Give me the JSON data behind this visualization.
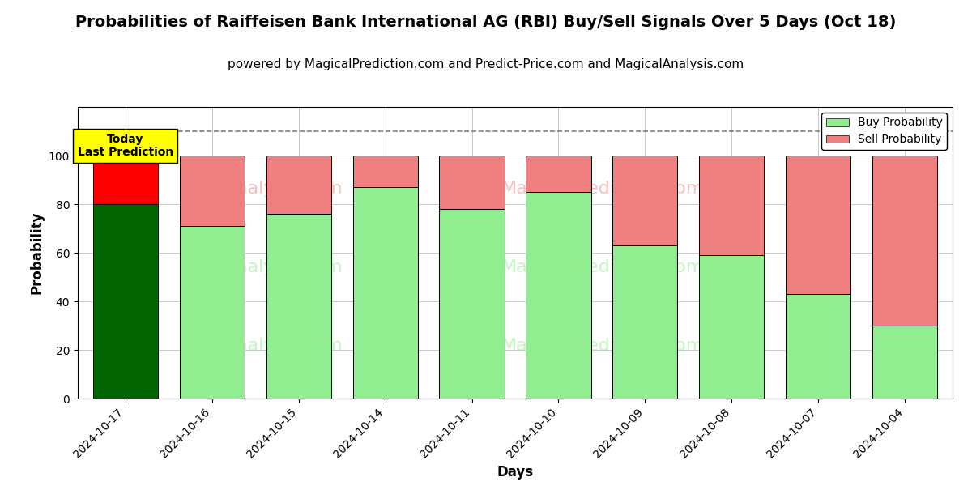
{
  "title": "Probabilities of Raiffeisen Bank International AG (RBI) Buy/Sell Signals Over 5 Days (Oct 18)",
  "subtitle": "powered by MagicalPrediction.com and Predict-Price.com and MagicalAnalysis.com",
  "xlabel": "Days",
  "ylabel": "Probability",
  "categories": [
    "2024-10-17",
    "2024-10-16",
    "2024-10-15",
    "2024-10-14",
    "2024-10-11",
    "2024-10-10",
    "2024-10-09",
    "2024-10-08",
    "2024-10-07",
    "2024-10-04"
  ],
  "buy_values": [
    80,
    71,
    76,
    87,
    78,
    85,
    63,
    59,
    43,
    30
  ],
  "sell_values": [
    20,
    29,
    24,
    13,
    22,
    15,
    37,
    41,
    57,
    70
  ],
  "today_buy_color": "#006400",
  "today_sell_color": "#FF0000",
  "buy_color": "#90EE90",
  "sell_color": "#F08080",
  "bar_edge_color": "#000000",
  "ylim": [
    0,
    120
  ],
  "yticks": [
    0,
    20,
    40,
    60,
    80,
    100
  ],
  "dashed_line_y": 110,
  "today_label_bg": "#FFFF00",
  "today_label_text": "Today\nLast Prediction",
  "legend_buy_label": "Buy Probability",
  "legend_sell_label": "Sell Probability",
  "title_fontsize": 14,
  "subtitle_fontsize": 11,
  "axis_label_fontsize": 12,
  "tick_fontsize": 10,
  "legend_fontsize": 10
}
